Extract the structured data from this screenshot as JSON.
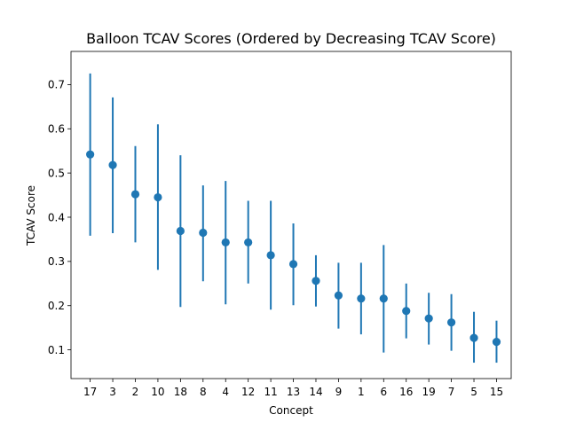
{
  "chart_data": {
    "type": "scatter",
    "title": "Balloon TCAV Scores (Ordered by Decreasing TCAV Score)",
    "xlabel": "Concept",
    "ylabel": "TCAV Score",
    "categories": [
      "17",
      "3",
      "2",
      "10",
      "18",
      "8",
      "4",
      "12",
      "11",
      "13",
      "14",
      "9",
      "1",
      "6",
      "16",
      "19",
      "7",
      "5",
      "15"
    ],
    "values": [
      0.542,
      0.518,
      0.452,
      0.445,
      0.369,
      0.365,
      0.343,
      0.343,
      0.314,
      0.294,
      0.256,
      0.223,
      0.216,
      0.216,
      0.188,
      0.171,
      0.162,
      0.127,
      0.118
    ],
    "error_low": [
      0.358,
      0.364,
      0.343,
      0.281,
      0.197,
      0.255,
      0.203,
      0.25,
      0.191,
      0.201,
      0.198,
      0.148,
      0.135,
      0.094,
      0.126,
      0.112,
      0.098,
      0.071,
      0.071
    ],
    "error_high": [
      0.725,
      0.671,
      0.561,
      0.61,
      0.54,
      0.472,
      0.482,
      0.437,
      0.437,
      0.386,
      0.314,
      0.297,
      0.297,
      0.337,
      0.25,
      0.229,
      0.226,
      0.186,
      0.166
    ],
    "ylim": [
      0.035,
      0.775
    ],
    "yticks": [
      0.1,
      0.2,
      0.3,
      0.4,
      0.5,
      0.6,
      0.7
    ],
    "ytick_labels": [
      "0.1",
      "0.2",
      "0.3",
      "0.4",
      "0.5",
      "0.6",
      "0.7"
    ],
    "grid": false,
    "color": "#1f77b4"
  }
}
